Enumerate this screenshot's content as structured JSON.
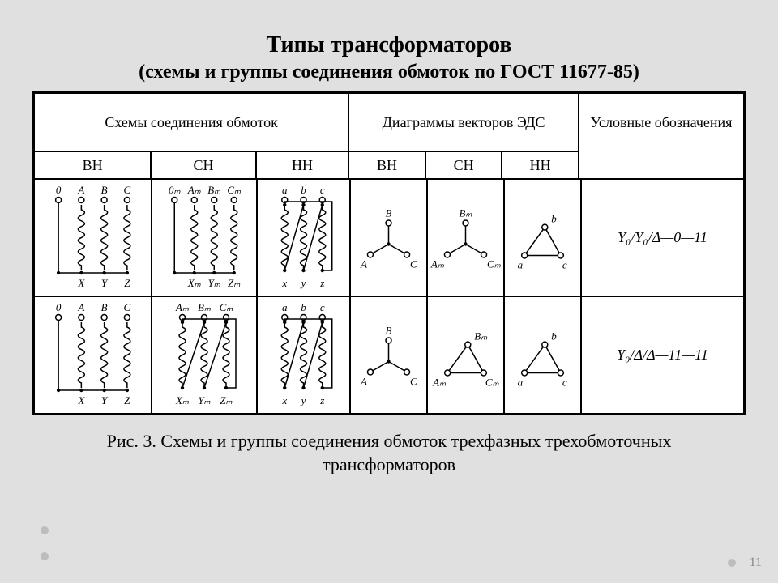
{
  "title": "Типы трансформаторов",
  "subtitle": "(схемы и группы соединения обмоток по ГОСТ 11677-85)",
  "headers": {
    "schemes": "Схемы соединения обмоток",
    "vectors": "Диаграммы векторов ЭДС",
    "symbols": "Условные обозначения",
    "bh": "ВН",
    "ch": "СН",
    "hh": "НН"
  },
  "designations": {
    "row1": "Y₀/Y₀/Δ—0—11",
    "row2": "Y₀/Δ/Δ—11—11"
  },
  "caption": "Рис. 3. Схемы и группы соединения обмоток трехфазных трехобмоточных трансформаторов",
  "pagenum": "11",
  "colors": {
    "bg": "#e0e0e0",
    "cell_bg": "#ffffff",
    "stroke": "#000000",
    "fill": "#ffffff"
  },
  "windings": {
    "row1": {
      "bh": {
        "type": "wye_neutral",
        "top_labels": [
          "0",
          "A",
          "B",
          "C"
        ],
        "bottom_labels": [
          "X",
          "Y",
          "Z"
        ]
      },
      "ch": {
        "type": "wye_neutral",
        "top_labels": [
          "0ₘ",
          "Aₘ",
          "Bₘ",
          "Cₘ"
        ],
        "bottom_labels": [
          "Xₘ",
          "Yₘ",
          "Zₘ"
        ]
      },
      "hh": {
        "type": "delta",
        "top_labels": [
          "a",
          "b",
          "c"
        ],
        "bottom_labels": [
          "x",
          "y",
          "z"
        ]
      }
    },
    "row2": {
      "bh": {
        "type": "wye_neutral",
        "top_labels": [
          "0",
          "A",
          "B",
          "C"
        ],
        "bottom_labels": [
          "X",
          "Y",
          "Z"
        ]
      },
      "ch": {
        "type": "delta",
        "top_labels": [
          "Aₘ",
          "Bₘ",
          "Cₘ"
        ],
        "bottom_labels": [
          "Xₘ",
          "Yₘ",
          "Zₘ"
        ]
      },
      "hh": {
        "type": "delta",
        "top_labels": [
          "a",
          "b",
          "c"
        ],
        "bottom_labels": [
          "x",
          "y",
          "z"
        ]
      }
    }
  },
  "vectors": {
    "row1": {
      "bh": {
        "type": "wye",
        "labels": [
          "A",
          "B",
          "C"
        ]
      },
      "ch": {
        "type": "wye",
        "labels": [
          "Aₘ",
          "Bₘ",
          "Cₘ"
        ]
      },
      "hh": {
        "type": "delta",
        "labels": [
          "a",
          "b",
          "c"
        ]
      }
    },
    "row2": {
      "bh": {
        "type": "wye",
        "labels": [
          "A",
          "B",
          "C"
        ]
      },
      "ch": {
        "type": "delta",
        "labels": [
          "Aₘ",
          "Bₘ",
          "Cₘ"
        ]
      },
      "hh": {
        "type": "delta",
        "labels": [
          "a",
          "b",
          "c"
        ]
      }
    }
  },
  "style": {
    "stroke_width": 1.5,
    "terminal_radius": 3.5,
    "coil_loops": 5,
    "font_size_labels": 13,
    "font_size_designation": 16
  }
}
